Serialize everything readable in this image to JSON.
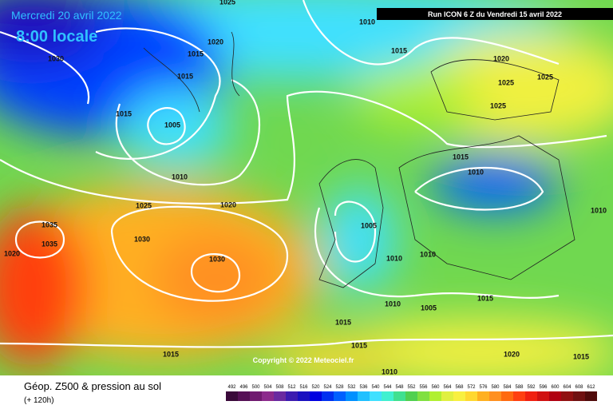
{
  "header": {
    "date": "Mercredi 20 avril 2022",
    "time": "8:00 locale",
    "run": "Run ICON 6 Z du Vendredi 15 avril 2022"
  },
  "copyright": "Copyright © 2022 Meteociel.fr",
  "footer": {
    "title": "Géop. Z500 & pression au sol",
    "lead": "(+ 120h)"
  },
  "colorscale": {
    "values": [
      492,
      496,
      500,
      504,
      508,
      512,
      516,
      520,
      524,
      528,
      532,
      536,
      540,
      544,
      548,
      552,
      556,
      560,
      564,
      568,
      572,
      576,
      580,
      584,
      588,
      592,
      596,
      600,
      604,
      608,
      612
    ],
    "colors": [
      "#3a0a3a",
      "#551055",
      "#701a70",
      "#8c2a8c",
      "#6a2aa0",
      "#3c1cb0",
      "#1a10c0",
      "#0000e0",
      "#0030f0",
      "#0060ff",
      "#0090ff",
      "#20c0ff",
      "#40e0ff",
      "#40f0d0",
      "#40e090",
      "#50d050",
      "#80e040",
      "#b0f030",
      "#e0f040",
      "#f8f040",
      "#ffd830",
      "#ffb020",
      "#ff9020",
      "#ff6a10",
      "#ff4010",
      "#f02010",
      "#d01010",
      "#b00010",
      "#901010",
      "#701010",
      "#500a0a"
    ]
  },
  "isobar_labels": [
    1025,
    1010,
    1030,
    1020,
    1015,
    1015,
    1015,
    1020,
    1025,
    1025,
    1025,
    1015,
    1005,
    1010,
    1025,
    1020,
    1015,
    1010,
    1035,
    1035,
    1030,
    1020,
    1030,
    1005,
    1010,
    1010,
    1010,
    1010,
    1005,
    1015,
    1015,
    1015,
    1015,
    1020,
    1015,
    1010
  ]
}
